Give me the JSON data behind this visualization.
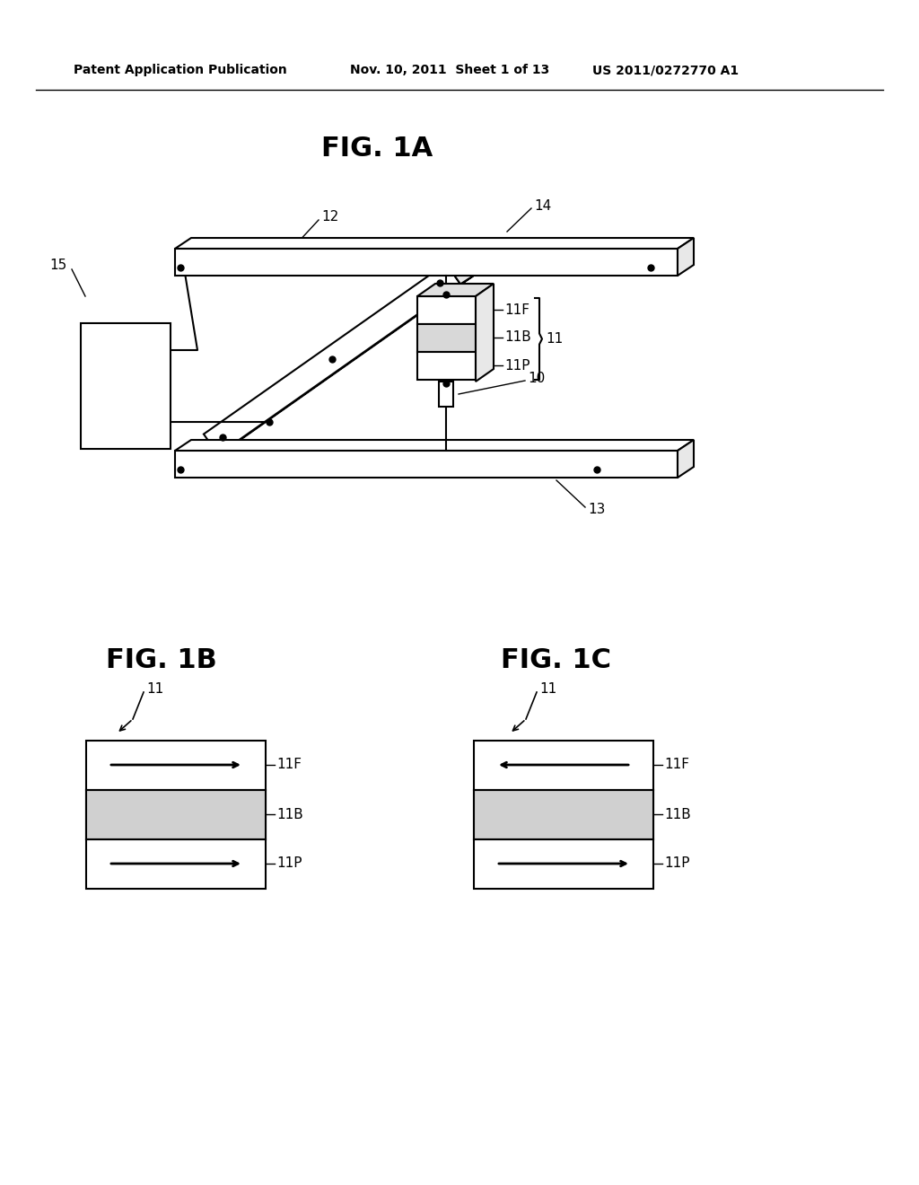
{
  "bg_color": "#ffffff",
  "header_left": "Patent Application Publication",
  "header_mid": "Nov. 10, 2011  Sheet 1 of 13",
  "header_right": "US 2011/0272770 A1",
  "fig1a_title": "FIG. 1A",
  "fig1b_title": "FIG. 1B",
  "fig1c_title": "FIG. 1C",
  "line_color": "#000000",
  "fill_light": "#e8e8e8",
  "fill_mid": "#c0c0c0",
  "fill_dark": "#808080"
}
